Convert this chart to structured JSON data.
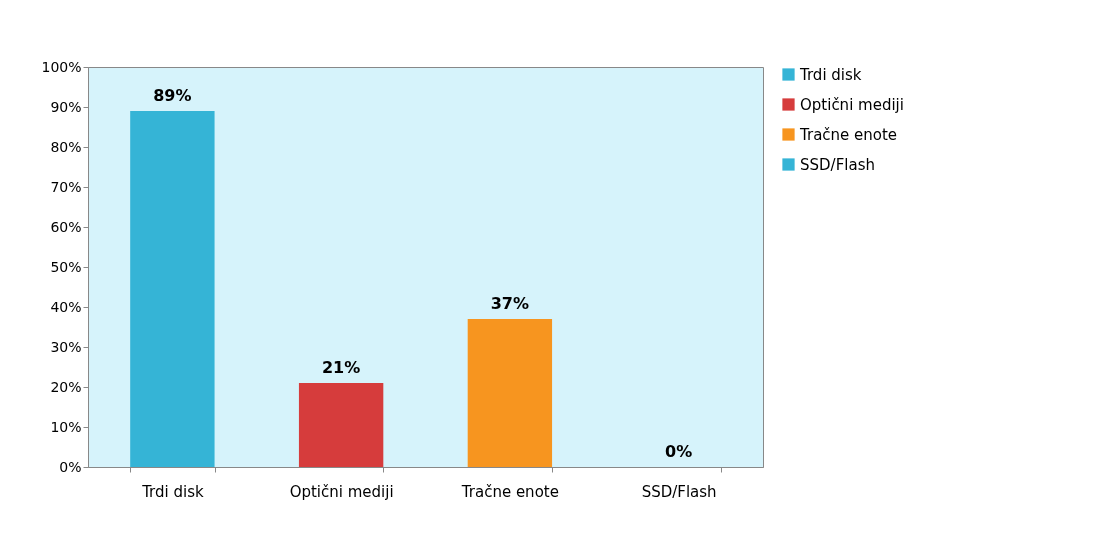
{
  "chart_data": {
    "type": "bar",
    "categories": [
      "Trdi disk",
      "Optični mediji",
      "Tračne enote",
      "SSD/Flash"
    ],
    "stacked": true,
    "series": [
      {
        "name": "Trdi disk",
        "color": "#35b4d6",
        "values": [
          89,
          null,
          null,
          null
        ],
        "value_labels": [
          "89%",
          null,
          null,
          null
        ]
      },
      {
        "name": "Optični mediji",
        "color": "#d63c3c",
        "values": [
          null,
          21,
          null,
          null
        ],
        "value_labels": [
          null,
          "21%",
          null,
          null
        ]
      },
      {
        "name": "Tračne enote",
        "color": "#f7951f",
        "values": [
          null,
          null,
          37,
          null
        ],
        "value_labels": [
          null,
          null,
          "37%",
          null
        ]
      },
      {
        "name": "SSD/Flash",
        "color": "#35b4d6",
        "values": [
          null,
          null,
          null,
          0
        ],
        "value_labels": [
          null,
          null,
          null,
          "0%"
        ]
      }
    ],
    "ylim": [
      0,
      100
    ],
    "yticks": [
      {
        "value": 0,
        "label": "0%"
      },
      {
        "value": 10,
        "label": "10%"
      },
      {
        "value": 20,
        "label": "20%"
      },
      {
        "value": 30,
        "label": "30%"
      },
      {
        "value": 40,
        "label": "40%"
      },
      {
        "value": 50,
        "label": "50%"
      },
      {
        "value": 60,
        "label": "60%"
      },
      {
        "value": 70,
        "label": "70%"
      },
      {
        "value": 80,
        "label": "80%"
      },
      {
        "value": 90,
        "label": "90%"
      },
      {
        "value": 100,
        "label": "100%"
      }
    ],
    "grid": false,
    "legend": "right"
  }
}
